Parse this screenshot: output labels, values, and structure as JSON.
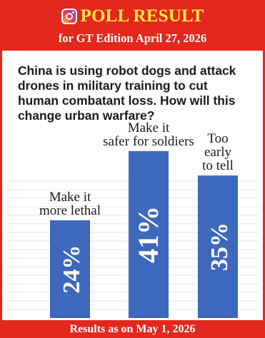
{
  "header": {
    "icon": "instagram-icon",
    "title": "POLL RESULT",
    "edition": "for GT Edition April 27, 2026",
    "colors": {
      "banner": "#e3281e",
      "title": "#ffea3a"
    }
  },
  "question": "China is using robot dogs and attack drones in military training to cut human combatant loss. How will this change urban warfare?",
  "chart_data": {
    "type": "bar",
    "categories": [
      "Make it more lethal",
      "Make it safer for soldiers",
      "Too early to tell"
    ],
    "category_lines": [
      [
        "Make it",
        "more lethal"
      ],
      [
        "Make it",
        "safer for soldiers"
      ],
      [
        "Too",
        "early",
        "to tell"
      ]
    ],
    "values": [
      24,
      41,
      35
    ],
    "value_labels": [
      "24%",
      "41%",
      "35%"
    ],
    "ylim": [
      0,
      45
    ],
    "grid": true,
    "bar_color": "#3d68bb"
  },
  "footer": {
    "text": "Results as on May 1, 2026"
  }
}
